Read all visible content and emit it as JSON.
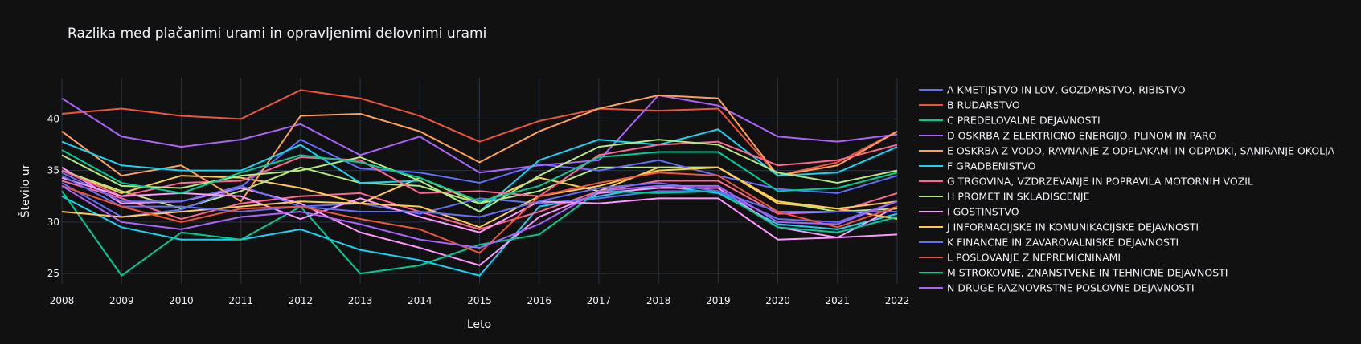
{
  "chart_data": {
    "type": "line",
    "title": "Razlika med plačanimi urami in opravljenimi delovnimi urami",
    "xlabel": "Leto",
    "ylabel": "Število ur",
    "x": [
      2008,
      2009,
      2010,
      2011,
      2012,
      2013,
      2014,
      2015,
      2016,
      2017,
      2018,
      2019,
      2020,
      2021,
      2022
    ],
    "xlim": [
      2008,
      2022
    ],
    "ylim": [
      24,
      44
    ],
    "yticks": [
      25,
      30,
      35,
      40
    ],
    "grid": true,
    "legend_position": "right",
    "colors": [
      "#636efa",
      "#EF553B",
      "#00cc96",
      "#ab63fa",
      "#FFA15A",
      "#19d3f3",
      "#FF6692",
      "#B6E880",
      "#FF97FF",
      "#FECB52"
    ],
    "series": [
      {
        "name": "A KMETIJSTVO IN LOV, GOZDARSTVO, RIBISTVO",
        "values": [
          33.8,
          30.5,
          31.2,
          33.4,
          38.0,
          35.2,
          34.8,
          33.8,
          35.6,
          35.0,
          36.0,
          34.5,
          33.2,
          32.8,
          34.5
        ]
      },
      {
        "name": "B RUDARSTVO",
        "values": [
          40.5,
          41.0,
          40.3,
          40.0,
          42.8,
          42.0,
          40.3,
          37.8,
          39.8,
          41.0,
          40.8,
          41.0,
          34.5,
          35.8,
          38.8
        ]
      },
      {
        "name": "C PREDELOVALNE DEJAVNOSTI",
        "values": [
          33.0,
          24.8,
          29.0,
          28.3,
          31.5,
          25.0,
          25.8,
          27.8,
          28.8,
          33.0,
          32.8,
          33.0,
          29.5,
          29.0,
          30.5
        ]
      },
      {
        "name": "D OSKRBA Z ELEKTRICNO ENERGIJO, PLINOM IN PARO",
        "values": [
          42.0,
          38.3,
          37.3,
          38.0,
          39.5,
          36.5,
          38.3,
          34.8,
          35.5,
          36.0,
          42.3,
          41.3,
          38.3,
          37.8,
          38.5
        ]
      },
      {
        "name": "E OSKRBA Z VODO, RAVNANJE Z ODPLAKAMI IN ODPADKI, SANIRANJE OKOLJA",
        "values": [
          38.8,
          34.5,
          35.5,
          32.0,
          40.3,
          40.5,
          38.8,
          35.8,
          38.8,
          41.0,
          42.3,
          42.0,
          34.5,
          35.5,
          38.8
        ]
      },
      {
        "name": "F GRADBENISTVO",
        "values": [
          37.8,
          35.5,
          35.0,
          35.0,
          37.5,
          33.8,
          34.0,
          31.0,
          36.0,
          38.0,
          37.5,
          39.0,
          34.5,
          34.8,
          37.3
        ]
      },
      {
        "name": "G TRGOVINA, VZDRZEVANJE IN POPRAVILA MOTORNIH VOZIL",
        "values": [
          35.0,
          32.5,
          33.8,
          34.0,
          36.3,
          36.0,
          32.8,
          33.0,
          32.5,
          36.5,
          37.5,
          37.8,
          35.5,
          36.0,
          37.5
        ]
      },
      {
        "name": "H PROMET IN SKLADISCENJE",
        "values": [
          36.5,
          33.5,
          33.3,
          34.5,
          35.0,
          36.3,
          34.0,
          31.0,
          34.5,
          37.3,
          38.0,
          37.5,
          34.8,
          33.8,
          35.0
        ]
      },
      {
        "name": "I GOSTINSTVO",
        "values": [
          34.3,
          32.5,
          32.8,
          32.5,
          30.3,
          32.3,
          30.5,
          29.0,
          32.0,
          31.8,
          32.3,
          32.3,
          28.3,
          28.5,
          28.8
        ]
      },
      {
        "name": "J INFORMACIJSKE IN KOMUNIKACIJSKE DEJAVNOSTI",
        "values": [
          31.0,
          30.5,
          31.0,
          31.5,
          32.0,
          31.8,
          31.5,
          29.5,
          32.5,
          33.5,
          35.0,
          35.3,
          32.0,
          31.3,
          32.0
        ]
      },
      {
        "name": "K FINANCNE IN ZAVAROVALNISKE DEJAVNOSTI",
        "values": [
          34.5,
          31.5,
          31.5,
          31.0,
          31.5,
          31.0,
          31.0,
          30.5,
          32.0,
          33.3,
          33.8,
          33.0,
          30.3,
          30.0,
          32.0
        ]
      },
      {
        "name": "L POSLOVANJE Z NEPREMICNINAMI",
        "values": [
          33.5,
          31.5,
          30.0,
          31.3,
          31.5,
          30.3,
          29.3,
          27.0,
          32.5,
          33.8,
          34.8,
          34.5,
          31.0,
          29.5,
          31.5
        ]
      },
      {
        "name": "M STROKOVNE, ZNANSTVENE IN TEHNICNE DEJAVNOSTI",
        "values": [
          37.0,
          33.8,
          32.8,
          34.8,
          36.5,
          35.8,
          34.3,
          32.0,
          33.5,
          36.3,
          36.8,
          36.8,
          33.0,
          33.3,
          34.8
        ]
      },
      {
        "name": "N DRUGE RAZNOVRSTNE POSLOVNE DEJAVNOSTI",
        "values": [
          33.5,
          30.0,
          29.3,
          30.5,
          31.0,
          29.8,
          28.3,
          27.5,
          29.8,
          33.0,
          33.5,
          33.5,
          30.0,
          29.8,
          32.0
        ]
      }
    ],
    "extra_lines": [
      {
        "color": "#19d3f3",
        "values": [
          32.5,
          29.5,
          28.3,
          28.3,
          29.3,
          27.3,
          26.3,
          24.8,
          31.5,
          32.5,
          33.5,
          32.8,
          29.8,
          29.3,
          30.8
        ]
      },
      {
        "color": "#FF6692",
        "values": [
          34.0,
          32.3,
          30.3,
          31.8,
          32.5,
          32.8,
          31.0,
          29.3,
          31.0,
          33.0,
          34.0,
          34.0,
          30.8,
          31.0,
          32.8
        ]
      },
      {
        "color": "#FF97FF",
        "values": [
          35.3,
          31.8,
          32.0,
          33.3,
          31.8,
          29.0,
          27.5,
          25.8,
          30.5,
          32.8,
          33.3,
          33.3,
          29.5,
          28.5,
          31.5
        ]
      },
      {
        "color": "#FECB52",
        "values": [
          35.0,
          32.8,
          34.5,
          34.3,
          33.3,
          31.8,
          34.3,
          31.8,
          34.3,
          33.0,
          35.3,
          35.3,
          31.8,
          31.3,
          30.3
        ]
      },
      {
        "color": "#B6E880",
        "values": [
          35.0,
          33.0,
          31.3,
          33.0,
          35.3,
          33.8,
          33.5,
          31.8,
          33.0,
          35.3,
          35.3,
          35.3,
          32.0,
          31.0,
          31.3
        ]
      },
      {
        "color": "#636efa",
        "values": [
          34.8,
          32.0,
          32.0,
          33.5,
          31.5,
          31.8,
          30.8,
          32.3,
          31.8,
          32.3,
          33.0,
          33.0,
          31.0,
          31.0,
          31.0
        ]
      }
    ]
  }
}
